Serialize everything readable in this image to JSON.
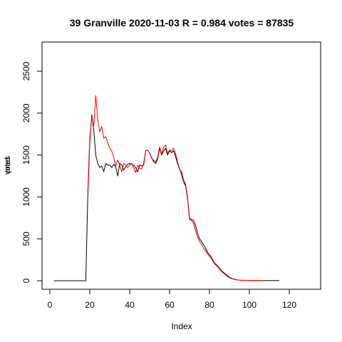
{
  "chart_data": {
    "type": "line",
    "title": "39 Granville 2020-11-03 R = 0.984 votes = 87835",
    "xlabel": "Index",
    "ylabel_overlap": [
      "votes",
      "pred"
    ],
    "xlim": [
      1,
      130
    ],
    "ylim": [
      0,
      2500
    ],
    "xticks": [
      0,
      20,
      40,
      60,
      80,
      100,
      120
    ],
    "yticks": [
      0,
      500,
      1000,
      1500,
      2000,
      2500
    ],
    "grid": false,
    "series": [
      {
        "color": "#000000",
        "values": [
          0,
          0,
          0,
          0,
          0,
          0,
          0,
          0,
          0,
          0,
          0,
          0,
          0,
          0,
          0,
          0,
          0,
          1000,
          1650,
          1980,
          1800,
          1500,
          1400,
          1350,
          1370,
          1300,
          1400,
          1380,
          1380,
          1350,
          1390,
          1360,
          1250,
          1400,
          1380,
          1320,
          1360,
          1390,
          1400,
          1390,
          1380,
          1350,
          1300,
          1380,
          1370,
          1380,
          1550,
          1560,
          1520,
          1470,
          1420,
          1400,
          1450,
          1580,
          1500,
          1550,
          1580,
          1500,
          1550,
          1530,
          1550,
          1480,
          1400,
          1330,
          1300,
          1200,
          1150,
          1000,
          750,
          730,
          720,
          660,
          570,
          500,
          470,
          430,
          390,
          340,
          310,
          280,
          230,
          200,
          180,
          150,
          120,
          100,
          80,
          60,
          40,
          30,
          20,
          15,
          10,
          8,
          5,
          5,
          5,
          4,
          3,
          3,
          2,
          2,
          2,
          2,
          2,
          2,
          2,
          2,
          2,
          2,
          2,
          2,
          2,
          2
        ]
      },
      {
        "color": "#ff0000",
        "values": [
          null,
          null,
          null,
          null,
          null,
          null,
          null,
          null,
          null,
          null,
          null,
          null,
          null,
          null,
          null,
          null,
          null,
          1070,
          1700,
          1950,
          1850,
          2210,
          1920,
          1780,
          1840,
          1700,
          1720,
          1650,
          1580,
          1550,
          1470,
          1370,
          1440,
          1380,
          1300,
          1400,
          1380,
          1350,
          1380,
          1400,
          1350,
          1290,
          1380,
          1340,
          1330,
          1400,
          1550,
          1560,
          1520,
          1460,
          1440,
          1420,
          1470,
          1600,
          1510,
          1590,
          1620,
          1520,
          1560,
          1550,
          1580,
          1520,
          1420,
          1340,
          1260,
          1180,
          1130,
          980,
          730,
          720,
          680,
          600,
          520,
          470,
          430,
          390,
          360,
          320,
          290,
          260,
          220,
          190,
          170,
          140,
          110,
          90,
          70,
          50,
          35,
          25,
          18,
          12,
          9,
          6,
          4,
          4,
          4,
          3,
          3,
          2,
          2,
          2,
          2,
          2,
          2,
          2,
          null,
          null,
          null,
          null,
          null,
          null
        ]
      }
    ]
  }
}
